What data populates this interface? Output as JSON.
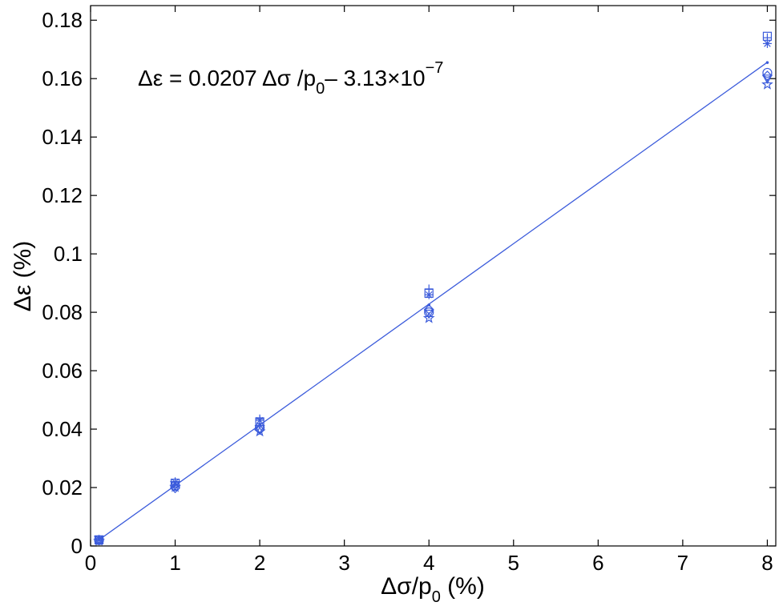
{
  "chart_data": {
    "type": "scatter",
    "xlabel": {
      "main": "Δσ/p",
      "sub": "0",
      "tail": " (%)"
    },
    "ylabel": "Δε (%)",
    "xlim": [
      0,
      8.1
    ],
    "ylim": [
      0,
      0.185
    ],
    "xticks": [
      "0",
      "1",
      "2",
      "3",
      "4",
      "5",
      "6",
      "7",
      "8"
    ],
    "yticks": [
      "0",
      "0.02",
      "0.04",
      "0.06",
      "0.08",
      "0.1",
      "0.12",
      "0.14",
      "0.16",
      "0.18"
    ],
    "grid": false,
    "annotation": {
      "part1": "Δε = 0.0207 Δσ /p",
      "sub": "0",
      "part2": "– 3.13×10",
      "sup": "−7"
    },
    "fit_line": {
      "slope": 0.0207,
      "intercept": -3.13e-07,
      "x_range": [
        0.1,
        8
      ]
    },
    "color": "#3b5bdb",
    "series": [
      {
        "marker": "plus",
        "x": [
          0.1,
          1,
          2,
          4,
          8
        ],
        "y": [
          0.0022,
          0.022,
          0.0435,
          0.088,
          0.174
        ]
      },
      {
        "marker": "square",
        "x": [
          0.1,
          1,
          2,
          4,
          8
        ],
        "y": [
          0.0021,
          0.0215,
          0.0425,
          0.0865,
          0.1745
        ]
      },
      {
        "marker": "asterisk",
        "x": [
          0.1,
          1,
          2,
          4,
          8
        ],
        "y": [
          0.0022,
          0.0218,
          0.043,
          0.086,
          0.172
        ]
      },
      {
        "marker": "circle",
        "x": [
          0.1,
          1,
          2,
          4,
          8
        ],
        "y": [
          0.002,
          0.0205,
          0.0405,
          0.08,
          0.162
        ]
      },
      {
        "marker": "diamond",
        "x": [
          0.1,
          1,
          2,
          4,
          8
        ],
        "y": [
          0.0019,
          0.0198,
          0.0398,
          0.081,
          0.161
        ]
      },
      {
        "marker": "triangle",
        "x": [
          0.1,
          1,
          2,
          4,
          8
        ],
        "y": [
          0.0021,
          0.0208,
          0.04,
          0.0795,
          0.16
        ]
      },
      {
        "marker": "hexagram",
        "x": [
          0.1,
          1,
          2,
          4,
          8
        ],
        "y": [
          0.0018,
          0.0202,
          0.0392,
          0.078,
          0.158
        ]
      },
      {
        "marker": "dot",
        "x": [
          0.1,
          1,
          2,
          4,
          8
        ],
        "y": [
          0.0022,
          0.021,
          0.0415,
          0.0825,
          0.1655
        ]
      }
    ]
  }
}
